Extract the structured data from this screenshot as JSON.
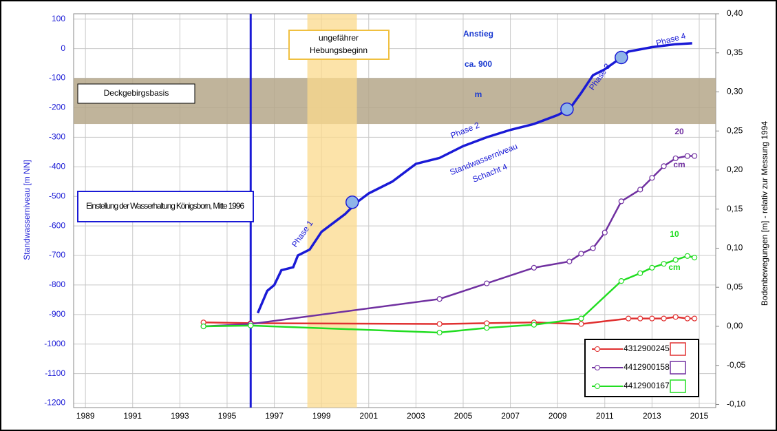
{
  "chart_data": {
    "type": "line",
    "y_label": "Standwasserniveau [m NN]",
    "y2_label": "Bodenbewegungen [m] -  relativ zur Messung 1994",
    "xlim": [
      1988.5,
      2015.7
    ],
    "xticks": [
      1989,
      1991,
      1993,
      1995,
      1997,
      1999,
      2001,
      2003,
      2005,
      2007,
      2009,
      2011,
      2013,
      2015
    ],
    "ylim": [
      -1215,
      118
    ],
    "yticks": [
      100,
      0,
      -100,
      -200,
      -300,
      -400,
      -500,
      -600,
      -700,
      -800,
      -900,
      -1000,
      -1100,
      -1200
    ],
    "y2lim": [
      -0.104,
      0.4
    ],
    "y2ticks": [
      {
        "value": 0.4,
        "label": "0,40"
      },
      {
        "value": 0.35,
        "label": "0,35"
      },
      {
        "value": 0.3,
        "label": "0,30"
      },
      {
        "value": 0.25,
        "label": "0,25"
      },
      {
        "value": 0.2,
        "label": "0,20"
      },
      {
        "value": 0.15,
        "label": "0,15"
      },
      {
        "value": 0.1,
        "label": "0,10"
      },
      {
        "value": 0.05,
        "label": "0,05"
      },
      {
        "value": 0,
        "label": "0,00"
      },
      {
        "value": -0.05,
        "label": "-0,05"
      },
      {
        "value": -0.1,
        "label": "-0,10"
      }
    ],
    "grid": true,
    "hband": {
      "label": "Deckgebirgsbasis",
      "range": [
        -255,
        -100
      ],
      "color": "#b5a78a"
    },
    "vband": {
      "label": "ungefährer Hebungsbeginn",
      "range": [
        1998.4,
        2000.5
      ],
      "color": "#fbd98c"
    },
    "vline": {
      "label": "Einstellung der Wasserhaltung Königsborn, Mitte 1996",
      "x": 1996,
      "color": "#1a1ad6"
    },
    "water": {
      "color": "#1a1ad6",
      "x": [
        1996.3,
        1996.7,
        1997,
        1997.3,
        1997.8,
        1998,
        1998.5,
        1999,
        1999.5,
        2000,
        2000.5,
        2001,
        2002,
        2003,
        2004,
        2005,
        2006,
        2007,
        2008,
        2009,
        2009.5,
        2010,
        2010.5,
        2011,
        2011.7,
        2012,
        2013,
        2014,
        2014.7
      ],
      "values": [
        -895,
        -820,
        -800,
        -750,
        -740,
        -700,
        -680,
        -620,
        -590,
        -560,
        -520,
        -490,
        -450,
        -390,
        -370,
        -330,
        -300,
        -275,
        -255,
        -225,
        -205,
        -150,
        -90,
        -70,
        -30,
        -10,
        5,
        15,
        18
      ],
      "phase_x": [
        2000.3,
        2009.4,
        2011.7
      ],
      "phase_values": [
        -520,
        -205,
        -30
      ],
      "labels": [
        "Phase 1",
        "Phase 2",
        "Phase 3",
        "Phase 4",
        "Standwasserniveau",
        "Schacht 4"
      ]
    },
    "annotations": {
      "rise": [
        "Anstieg",
        "ca. 900",
        "m"
      ],
      "purple": [
        "20",
        "cm"
      ],
      "green": [
        "10",
        "cm"
      ]
    },
    "series": [
      {
        "name": "4312900245",
        "color": "#e03030",
        "axis": "y2",
        "x": [
          1994,
          1996,
          2004,
          2006,
          2008,
          2010,
          2012,
          2012.5,
          2013,
          2013.5,
          2014,
          2014.5,
          2014.8
        ],
        "values": [
          0.005,
          0.004,
          0.003,
          0.004,
          0.005,
          0.003,
          0.01,
          0.01,
          0.01,
          0.01,
          0.012,
          0.01,
          0.01
        ]
      },
      {
        "name": "4412900158",
        "color": "#7030a0",
        "axis": "y2",
        "x": [
          1994,
          1996,
          2004,
          2006,
          2008,
          2009.5,
          2010,
          2010.5,
          2011,
          2011.7,
          2012.5,
          2013,
          2013.5,
          2014,
          2014.5,
          2014.8
        ],
        "values": [
          0,
          0.003,
          0.035,
          0.055,
          0.075,
          0.083,
          0.093,
          0.1,
          0.12,
          0.16,
          0.175,
          0.19,
          0.205,
          0.215,
          0.218,
          0.218
        ]
      },
      {
        "name": "4412900167",
        "color": "#22dd22",
        "axis": "y2",
        "x": [
          1994,
          1996,
          2004,
          2006,
          2008,
          2010,
          2011.7,
          2012.5,
          2013,
          2013.5,
          2014,
          2014.5,
          2014.8
        ],
        "values": [
          0,
          0.001,
          -0.008,
          -0.002,
          0.002,
          0.01,
          0.058,
          0.068,
          0.075,
          0.08,
          0.085,
          0.09,
          0.088
        ]
      }
    ]
  }
}
